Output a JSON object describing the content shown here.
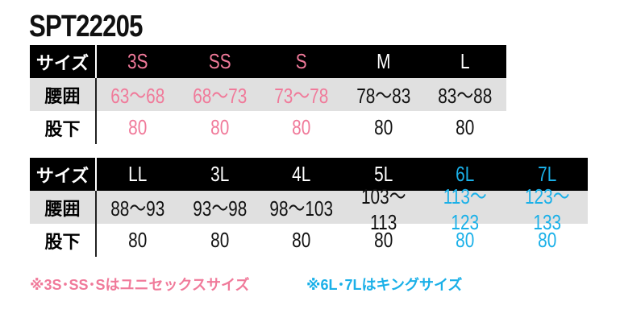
{
  "title": "SPT22205",
  "colors": {
    "pink": "#f07a9a",
    "blue": "#1ab0e8",
    "header_bg": "#000000",
    "row_bg": "#e0e0e0"
  },
  "labels": {
    "size": "サイズ",
    "waist": "腰囲",
    "inseam": "股下"
  },
  "table1": {
    "sizes": [
      "3S",
      "SS",
      "S",
      "M",
      "L"
    ],
    "waist": [
      "63〜68",
      "68〜73",
      "73〜78",
      "78〜83",
      "83〜88"
    ],
    "inseam": [
      "80",
      "80",
      "80",
      "80",
      "80"
    ],
    "color": [
      "pink",
      "pink",
      "pink",
      "blk",
      "blk"
    ]
  },
  "table2": {
    "sizes": [
      "LL",
      "3L",
      "4L",
      "5L",
      "6L",
      "7L"
    ],
    "waist": [
      "88〜93",
      "93〜98",
      "98〜103",
      "103〜113",
      "113〜123",
      "123〜133"
    ],
    "inseam": [
      "80",
      "80",
      "80",
      "80",
      "80",
      "80"
    ],
    "color": [
      "blk",
      "blk",
      "blk",
      "blk",
      "blue",
      "blue"
    ]
  },
  "notes": {
    "unisex": "※3S･SS･Sはユニセックスサイズ",
    "king": "※6L･7Lはキングサイズ"
  }
}
